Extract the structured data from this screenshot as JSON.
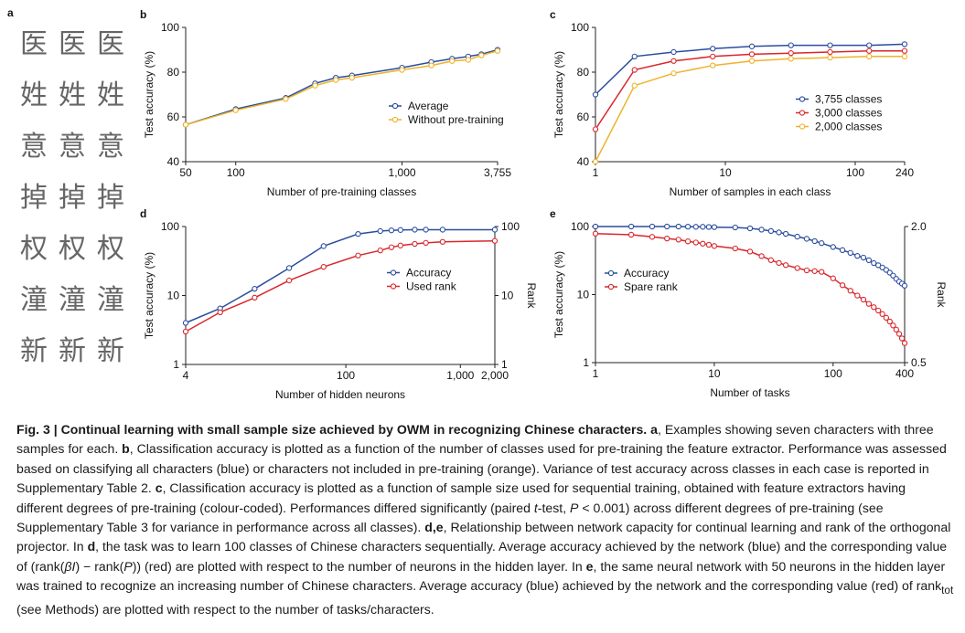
{
  "panel_a": {
    "label": "a",
    "rows": [
      [
        "医",
        "医",
        "医"
      ],
      [
        "姓",
        "姓",
        "姓"
      ],
      [
        "意",
        "意",
        "意"
      ],
      [
        "掉",
        "掉",
        "掉"
      ],
      [
        "权",
        "权",
        "权"
      ],
      [
        "潼",
        "潼",
        "潼"
      ],
      [
        "新",
        "新",
        "新"
      ]
    ]
  },
  "chart_data": [
    {
      "type": "line",
      "label": "b",
      "xlabel": "Number of pre-training classes",
      "ylabel": "Test accuracy (%)",
      "xlog": true,
      "xlim": [
        50,
        3755
      ],
      "xticks": [
        50,
        100,
        {
          "value": 1000,
          "label": "1,000"
        },
        {
          "value": 3755,
          "label": "3,755"
        }
      ],
      "ylim": [
        40,
        100
      ],
      "yticks": [
        40,
        60,
        80,
        100
      ],
      "legend": "center right",
      "x": [
        50,
        100,
        200,
        300,
        400,
        500,
        1000,
        1500,
        2000,
        2500,
        3000,
        3755
      ],
      "series": [
        {
          "name": "Average",
          "color": "#2a4d9e",
          "values": [
            56.5,
            63.5,
            68.5,
            75,
            77.5,
            78.5,
            82,
            84.5,
            86,
            87,
            88,
            90
          ]
        },
        {
          "name": "Without pre-training",
          "color": "#eeb32a",
          "values": [
            56.5,
            63,
            68,
            74,
            76.5,
            77.5,
            81,
            83,
            85,
            85.5,
            87.5,
            89.5
          ]
        }
      ]
    },
    {
      "type": "line",
      "label": "c",
      "xlabel": "Number of samples in each class",
      "ylabel": "Test accuracy (%)",
      "xlog": true,
      "xlim": [
        1,
        240
      ],
      "xticks": [
        1,
        10,
        100,
        240
      ],
      "ylim": [
        40,
        100
      ],
      "yticks": [
        40,
        60,
        80,
        100
      ],
      "legend": "center right",
      "x": [
        1,
        2,
        4,
        8,
        16,
        32,
        64,
        128,
        240
      ],
      "series": [
        {
          "name": "3,755 classes",
          "color": "#2a4d9e",
          "values": [
            70,
            87,
            89,
            90.5,
            91.5,
            92,
            92,
            92,
            92.5
          ]
        },
        {
          "name": "3,000 classes",
          "color": "#d9262b",
          "values": [
            54.5,
            81,
            85,
            87,
            88,
            88.5,
            89,
            89.5,
            89.5
          ]
        },
        {
          "name": "2,000 classes",
          "color": "#eeb32a",
          "values": [
            40,
            74,
            79.5,
            83,
            85,
            86,
            86.5,
            87,
            87
          ]
        }
      ]
    },
    {
      "type": "line",
      "label": "d",
      "xlabel": "Number of hidden neurons",
      "ylabel": "Test accuracy (%)",
      "y2label": "Rank",
      "xlog": true,
      "ylog": true,
      "y2log": true,
      "xlim": [
        4,
        2000
      ],
      "xticks": [
        4,
        100,
        {
          "value": 1000,
          "label": "1,000"
        },
        {
          "value": 2000,
          "label": "2,000"
        }
      ],
      "ylim": [
        1,
        100
      ],
      "yticks": [
        1,
        10,
        100
      ],
      "y2lim": [
        1,
        100
      ],
      "y2ticks": [
        1,
        10,
        100
      ],
      "legend": "center",
      "x": [
        4,
        8,
        16,
        32,
        64,
        128,
        200,
        250,
        300,
        400,
        500,
        700,
        2000
      ],
      "series": [
        {
          "name": "Accuracy",
          "color": "#2a4d9e",
          "values": [
            4,
            6.5,
            12.5,
            25,
            52,
            78,
            86,
            88,
            89,
            90,
            90,
            90,
            90
          ]
        },
        {
          "name": "Used rank",
          "color": "#d9262b",
          "axis": "y2",
          "values": [
            3,
            5.7,
            9.3,
            16.5,
            26,
            38,
            45,
            50,
            53,
            56,
            58,
            60,
            62
          ]
        }
      ]
    },
    {
      "type": "line",
      "label": "e",
      "xlabel": "Number of tasks",
      "ylabel": "Test accuracy (%)",
      "y2label": "Rank",
      "xlog": true,
      "ylog": true,
      "y2log": true,
      "xlim": [
        1,
        400
      ],
      "xticks": [
        1,
        10,
        100,
        400
      ],
      "ylim": [
        1,
        100
      ],
      "yticks": [
        1,
        10,
        100
      ],
      "y2lim": [
        0.5,
        2
      ],
      "y2ticks": [
        0.5,
        {
          "value": 2,
          "label": "2.0"
        }
      ],
      "legend": "upper left",
      "x": [
        1,
        2,
        3,
        4,
        5,
        6,
        7,
        8,
        9,
        10,
        15,
        20,
        25,
        30,
        35,
        40,
        50,
        60,
        70,
        80,
        100,
        120,
        140,
        160,
        180,
        200,
        220,
        240,
        260,
        280,
        300,
        320,
        340,
        360,
        380,
        400
      ],
      "series": [
        {
          "name": "Accuracy",
          "color": "#2a4d9e",
          "values": [
            100,
            100,
            100,
            100,
            100,
            99.5,
            99,
            99,
            98.5,
            98,
            97,
            94,
            90,
            86,
            82,
            78,
            71,
            66,
            61,
            57,
            50,
            45,
            41,
            37,
            35,
            32,
            29,
            27,
            25,
            23,
            21,
            19,
            17,
            15.5,
            14.5,
            13.5
          ]
        },
        {
          "name": "Spare rank",
          "color": "#d9262b",
          "axis": "y2",
          "values": [
            1.86,
            1.84,
            1.8,
            1.77,
            1.75,
            1.72,
            1.7,
            1.68,
            1.66,
            1.64,
            1.6,
            1.55,
            1.48,
            1.42,
            1.38,
            1.35,
            1.31,
            1.28,
            1.27,
            1.26,
            1.18,
            1.1,
            1.04,
            0.99,
            0.95,
            0.91,
            0.88,
            0.85,
            0.82,
            0.79,
            0.76,
            0.73,
            0.7,
            0.67,
            0.64,
            0.61
          ]
        }
      ]
    }
  ],
  "caption": [
    "Fig. 3 | Continual learning with small sample size achieved by OWM in recognizing Chinese characters. a",
    ", Examples showing seven characters with three samples for each. ",
    "b",
    ", Classification accuracy is plotted as a function of the number of classes used for pre-training the feature extractor. Performance was assessed based on classifying all characters (blue) or characters not included in pre-training (orange). Variance of test accuracy across classes in each case is reported in Supplementary Table 2. ",
    "c",
    ", Classification accuracy is plotted as a function of sample size used for sequential training, obtained with feature extractors having different degrees of pre-training (colour-coded). Performances differed significantly (paired ",
    "t",
    "-test, ",
    "P",
    " < 0.001) across different degrees of pre-training (see Supplementary Table 3 for variance in performance across all classes). ",
    "d,e",
    ", Relationship between network capacity for continual learning and rank of the orthogonal projector. In ",
    "d",
    ", the task was to learn 100 classes of Chinese characters sequentially. Average accuracy achieved by the network (blue) and the corresponding value of (rank(",
    "βI",
    ") − rank(",
    "P",
    ")) (red) are plotted with respect to the number of neurons in the hidden layer. In ",
    "e",
    ", the same neural network with 50 neurons in the hidden layer was trained to recognize an increasing number of Chinese characters. Average accuracy (blue) achieved by the network and the corresponding value (red) of rank",
    "tot",
    " (see Methods) are plotted with respect to the number of tasks/characters."
  ]
}
